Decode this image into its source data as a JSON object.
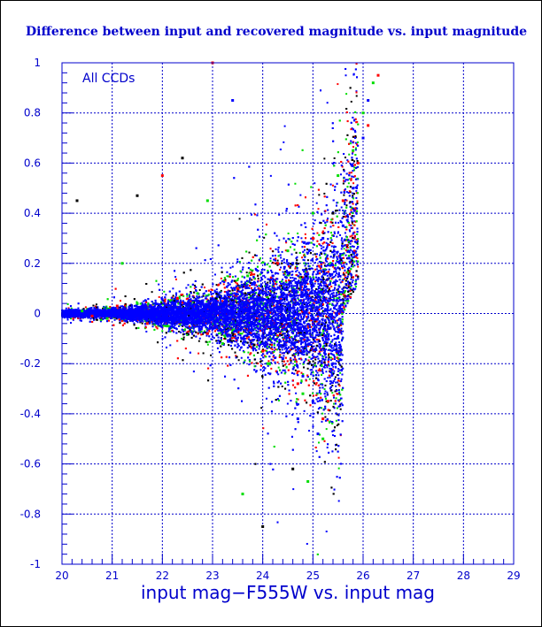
{
  "chart_data": {
    "type": "scatter",
    "title": "Difference between input and recovered magnitude vs. input magnitude",
    "xlabel": "input mag−F555W vs. input mag",
    "ylabel": "",
    "annotation": "All CCDs",
    "xlim": [
      20,
      29
    ],
    "ylim": [
      -1,
      1
    ],
    "x_ticks": [
      20,
      21,
      22,
      23,
      24,
      25,
      26,
      27,
      28,
      29
    ],
    "x_tick_labels": [
      "20",
      "21",
      "22",
      "23",
      "24",
      "25",
      "26",
      "27",
      "28",
      "29"
    ],
    "y_ticks": [
      1,
      0.8,
      0.6,
      0.4,
      0.2,
      0,
      -0.2,
      -0.4,
      -0.6,
      -0.8,
      -1
    ],
    "y_tick_labels": [
      "1",
      "0.8",
      "0.6",
      "0.4",
      "0.2",
      "0",
      "-0.2",
      "-0.4",
      "-0.6",
      "-0.8",
      "-1"
    ],
    "grid": true,
    "series": [
      {
        "color": "#0000ff",
        "points": [
          [
            20.2,
            0.0
          ],
          [
            20.5,
            0.01
          ],
          [
            20.8,
            -0.01
          ],
          [
            21.0,
            0.02
          ],
          [
            21.3,
            -0.02
          ],
          [
            21.6,
            0.03
          ],
          [
            21.9,
            -0.03
          ],
          [
            22.2,
            0.04
          ],
          [
            22.5,
            -0.04
          ],
          [
            22.8,
            0.05
          ],
          [
            23.0,
            -0.06
          ],
          [
            23.3,
            0.08
          ],
          [
            23.6,
            -0.1
          ],
          [
            23.8,
            0.12
          ],
          [
            24.0,
            -0.12
          ],
          [
            24.2,
            0.15
          ],
          [
            24.4,
            -0.18
          ],
          [
            24.6,
            0.2
          ],
          [
            24.8,
            -0.25
          ],
          [
            24.9,
            0.28
          ],
          [
            25.0,
            -0.35
          ],
          [
            25.2,
            0.3
          ],
          [
            25.4,
            -0.2
          ],
          [
            25.6,
            0.35
          ],
          [
            25.8,
            0.5
          ],
          [
            26.0,
            0.7
          ],
          [
            26.1,
            0.85
          ],
          [
            24.7,
            -0.42
          ],
          [
            25.1,
            -0.48
          ],
          [
            23.4,
            0.85
          ]
        ]
      },
      {
        "color": "#00dd00",
        "points": [
          [
            20.4,
            0.01
          ],
          [
            20.9,
            -0.02
          ],
          [
            21.5,
            0.04
          ],
          [
            22.1,
            -0.05
          ],
          [
            22.7,
            0.08
          ],
          [
            23.2,
            -0.12
          ],
          [
            23.7,
            0.15
          ],
          [
            24.1,
            -0.2
          ],
          [
            24.5,
            0.25
          ],
          [
            24.8,
            -0.32
          ],
          [
            25.0,
            0.4
          ],
          [
            25.2,
            -0.5
          ],
          [
            25.5,
            0.55
          ],
          [
            25.8,
            0.65
          ],
          [
            26.0,
            0.8
          ],
          [
            26.2,
            0.92
          ],
          [
            24.9,
            -0.67
          ],
          [
            23.6,
            -0.72
          ],
          [
            22.9,
            0.45
          ],
          [
            21.2,
            0.2
          ]
        ]
      },
      {
        "color": "#ff0000",
        "points": [
          [
            20.6,
            -0.01
          ],
          [
            21.1,
            0.03
          ],
          [
            21.7,
            -0.04
          ],
          [
            22.3,
            0.06
          ],
          [
            22.9,
            -0.08
          ],
          [
            23.5,
            0.1
          ],
          [
            24.0,
            -0.15
          ],
          [
            24.3,
            0.2
          ],
          [
            24.7,
            -0.28
          ],
          [
            25.0,
            0.3
          ],
          [
            25.3,
            -0.35
          ],
          [
            25.6,
            0.45
          ],
          [
            25.9,
            0.6
          ],
          [
            26.1,
            0.75
          ],
          [
            26.3,
            0.95
          ],
          [
            25.2,
            -0.42
          ],
          [
            22.0,
            0.55
          ],
          [
            23.0,
            1.0
          ]
        ]
      },
      {
        "color": "#000000",
        "points": [
          [
            20.3,
            0.45
          ],
          [
            21.5,
            0.47
          ],
          [
            22.4,
            0.62
          ],
          [
            24.0,
            -0.85
          ],
          [
            24.6,
            -0.62
          ],
          [
            25.4,
            0.4
          ]
        ]
      }
    ]
  }
}
